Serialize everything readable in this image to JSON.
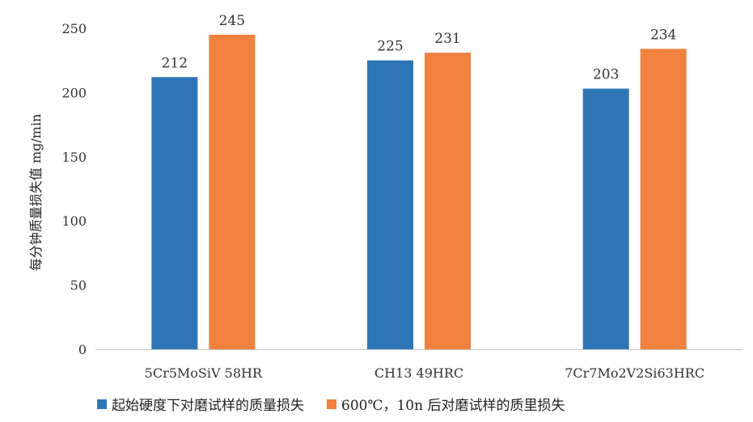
{
  "chart_data": {
    "type": "bar",
    "title": "",
    "xlabel": "",
    "ylabel": "每分钟质量损失值 mg/min",
    "ylim": [
      0,
      250
    ],
    "yticks": [
      0,
      50,
      100,
      150,
      200,
      250
    ],
    "grid": false,
    "legend_position": "bottom-left",
    "categories": [
      "5Cr5MoSiV 58HR",
      "CH13 49HRC",
      "7Cr7Mo2V2Si63HRC"
    ],
    "series": [
      {
        "name": "起始硬度下对磨试样的质量损失",
        "color": "#2e75b6",
        "values": [
          212,
          225,
          203
        ]
      },
      {
        "name": "600℃，10n 后对磨试样的质里损失",
        "color": "#f0813f",
        "values": [
          245,
          231,
          234
        ]
      }
    ]
  }
}
